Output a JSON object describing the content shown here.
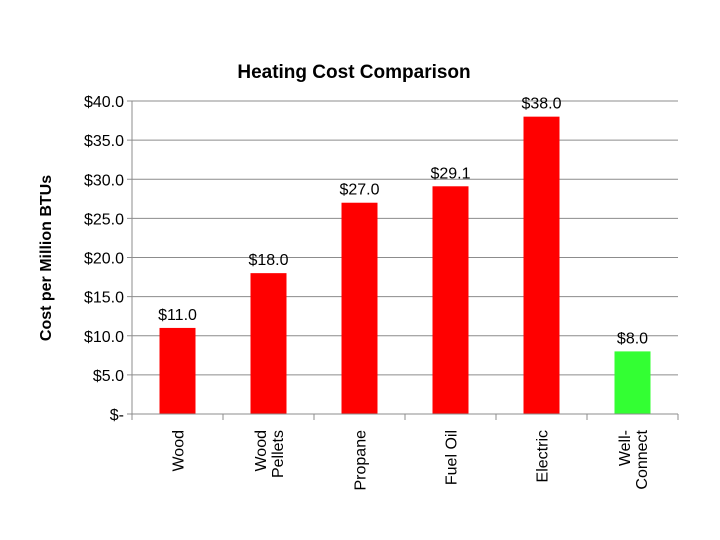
{
  "chart_data": {
    "type": "bar",
    "title": "Heating Cost Comparison",
    "xlabel": "",
    "ylabel": "Cost per Million BTUs",
    "ylim": [
      0,
      40
    ],
    "y_ticks": [
      0,
      5,
      10,
      15,
      20,
      25,
      30,
      35,
      40
    ],
    "y_tick_labels": [
      "$-",
      "$5.0",
      "$10.0",
      "$15.0",
      "$20.0",
      "$25.0",
      "$30.0",
      "$35.0",
      "$40.0"
    ],
    "grid": true,
    "legend": "none",
    "categories": [
      [
        "Wood"
      ],
      [
        "Wood",
        "Pellets"
      ],
      [
        "Propane"
      ],
      [
        "Fuel Oil"
      ],
      [
        "Electric"
      ],
      [
        "Well-",
        "Connect"
      ]
    ],
    "values": [
      11.0,
      18.0,
      27.0,
      29.1,
      38.0,
      8.0
    ],
    "data_labels": [
      "$11.0",
      "$18.0",
      "$27.0",
      "$29.1",
      "$38.0",
      "$8.0"
    ],
    "bar_colors": [
      "#ff0000",
      "#ff0000",
      "#ff0000",
      "#ff0000",
      "#ff0000",
      "#33ff33"
    ]
  }
}
